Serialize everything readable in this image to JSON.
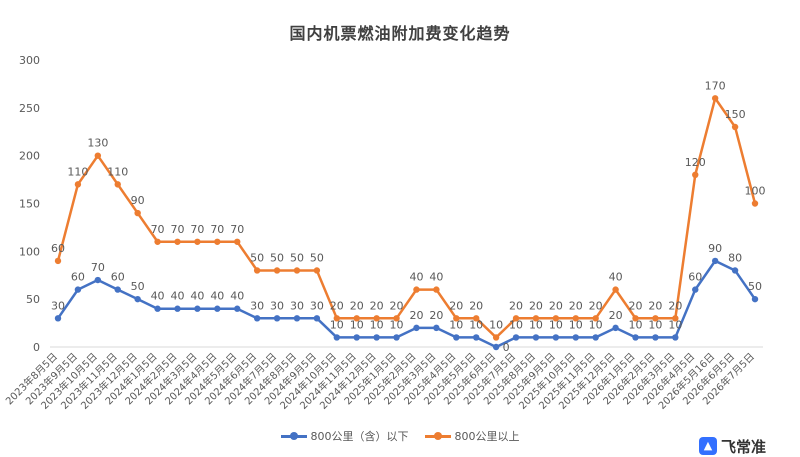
{
  "chart_data": {
    "type": "line",
    "title": "国内机票燃油附加费变化趋势",
    "categories": [
      "2023年8月5日",
      "2023年9月5日",
      "2023年10月5日",
      "2023年11月5日",
      "2023年12月5日",
      "2024年1月5日",
      "2024年2月5日",
      "2024年3月5日",
      "2024年4月5日",
      "2024年5月5日",
      "2024年6月5日",
      "2024年7月5日",
      "2024年8月5日",
      "2024年9月5日",
      "2024年10月5日",
      "2024年11月5日",
      "2024年12月5日",
      "2025年1月5日",
      "2025年2月5日",
      "2025年3月5日",
      "2025年4月5日",
      "2025年5月5日",
      "2025年6月5日",
      "2025年7月5日",
      "2025年8月5日",
      "2025年9月5日",
      "2025年10月5日",
      "2025年11月5日",
      "2025年12月5日",
      "2026年1月5日",
      "2026年2月5日",
      "2026年3月5日",
      "2026年4月5日",
      "2026年5月16日",
      "2026年6月5日",
      "2026年7月5日"
    ],
    "series": [
      {
        "name": "800公里（含）以下",
        "color": "#4472c4",
        "values": [
          30,
          60,
          70,
          60,
          50,
          40,
          40,
          40,
          40,
          40,
          30,
          30,
          30,
          30,
          10,
          10,
          10,
          10,
          20,
          20,
          10,
          10,
          0,
          10,
          10,
          10,
          10,
          10,
          20,
          10,
          10,
          10,
          60,
          90,
          80,
          50
        ]
      },
      {
        "name": "800公里以上",
        "color": "#ed7d31",
        "values": [
          90,
          170,
          200,
          170,
          140,
          110,
          110,
          110,
          110,
          110,
          80,
          80,
          80,
          80,
          30,
          30,
          30,
          30,
          60,
          60,
          30,
          30,
          10,
          30,
          30,
          30,
          30,
          30,
          60,
          30,
          30,
          30,
          180,
          260,
          230,
          150
        ]
      }
    ],
    "data_labels": [
      [
        30,
        60,
        70,
        60,
        50,
        40,
        40,
        40,
        40,
        40,
        30,
        30,
        30,
        30,
        10,
        10,
        10,
        10,
        20,
        20,
        10,
        10,
        0,
        10,
        10,
        10,
        10,
        10,
        20,
        10,
        10,
        10,
        60,
        90,
        80,
        50
      ],
      [
        60,
        110,
        130,
        110,
        90,
        70,
        70,
        70,
        70,
        70,
        50,
        50,
        50,
        50,
        20,
        20,
        20,
        20,
        40,
        40,
        20,
        20,
        10,
        20,
        20,
        20,
        20,
        20,
        40,
        20,
        20,
        20,
        120,
        170,
        150,
        100
      ]
    ],
    "ylim": [
      0,
      300
    ],
    "yticks": [
      0,
      50,
      100,
      150,
      200,
      250,
      300
    ],
    "xlabel": "",
    "ylabel": "",
    "grid": false,
    "legend_position": "bottom"
  },
  "watermark": {
    "text": "飞常准",
    "icon": "blue-app-icon"
  }
}
